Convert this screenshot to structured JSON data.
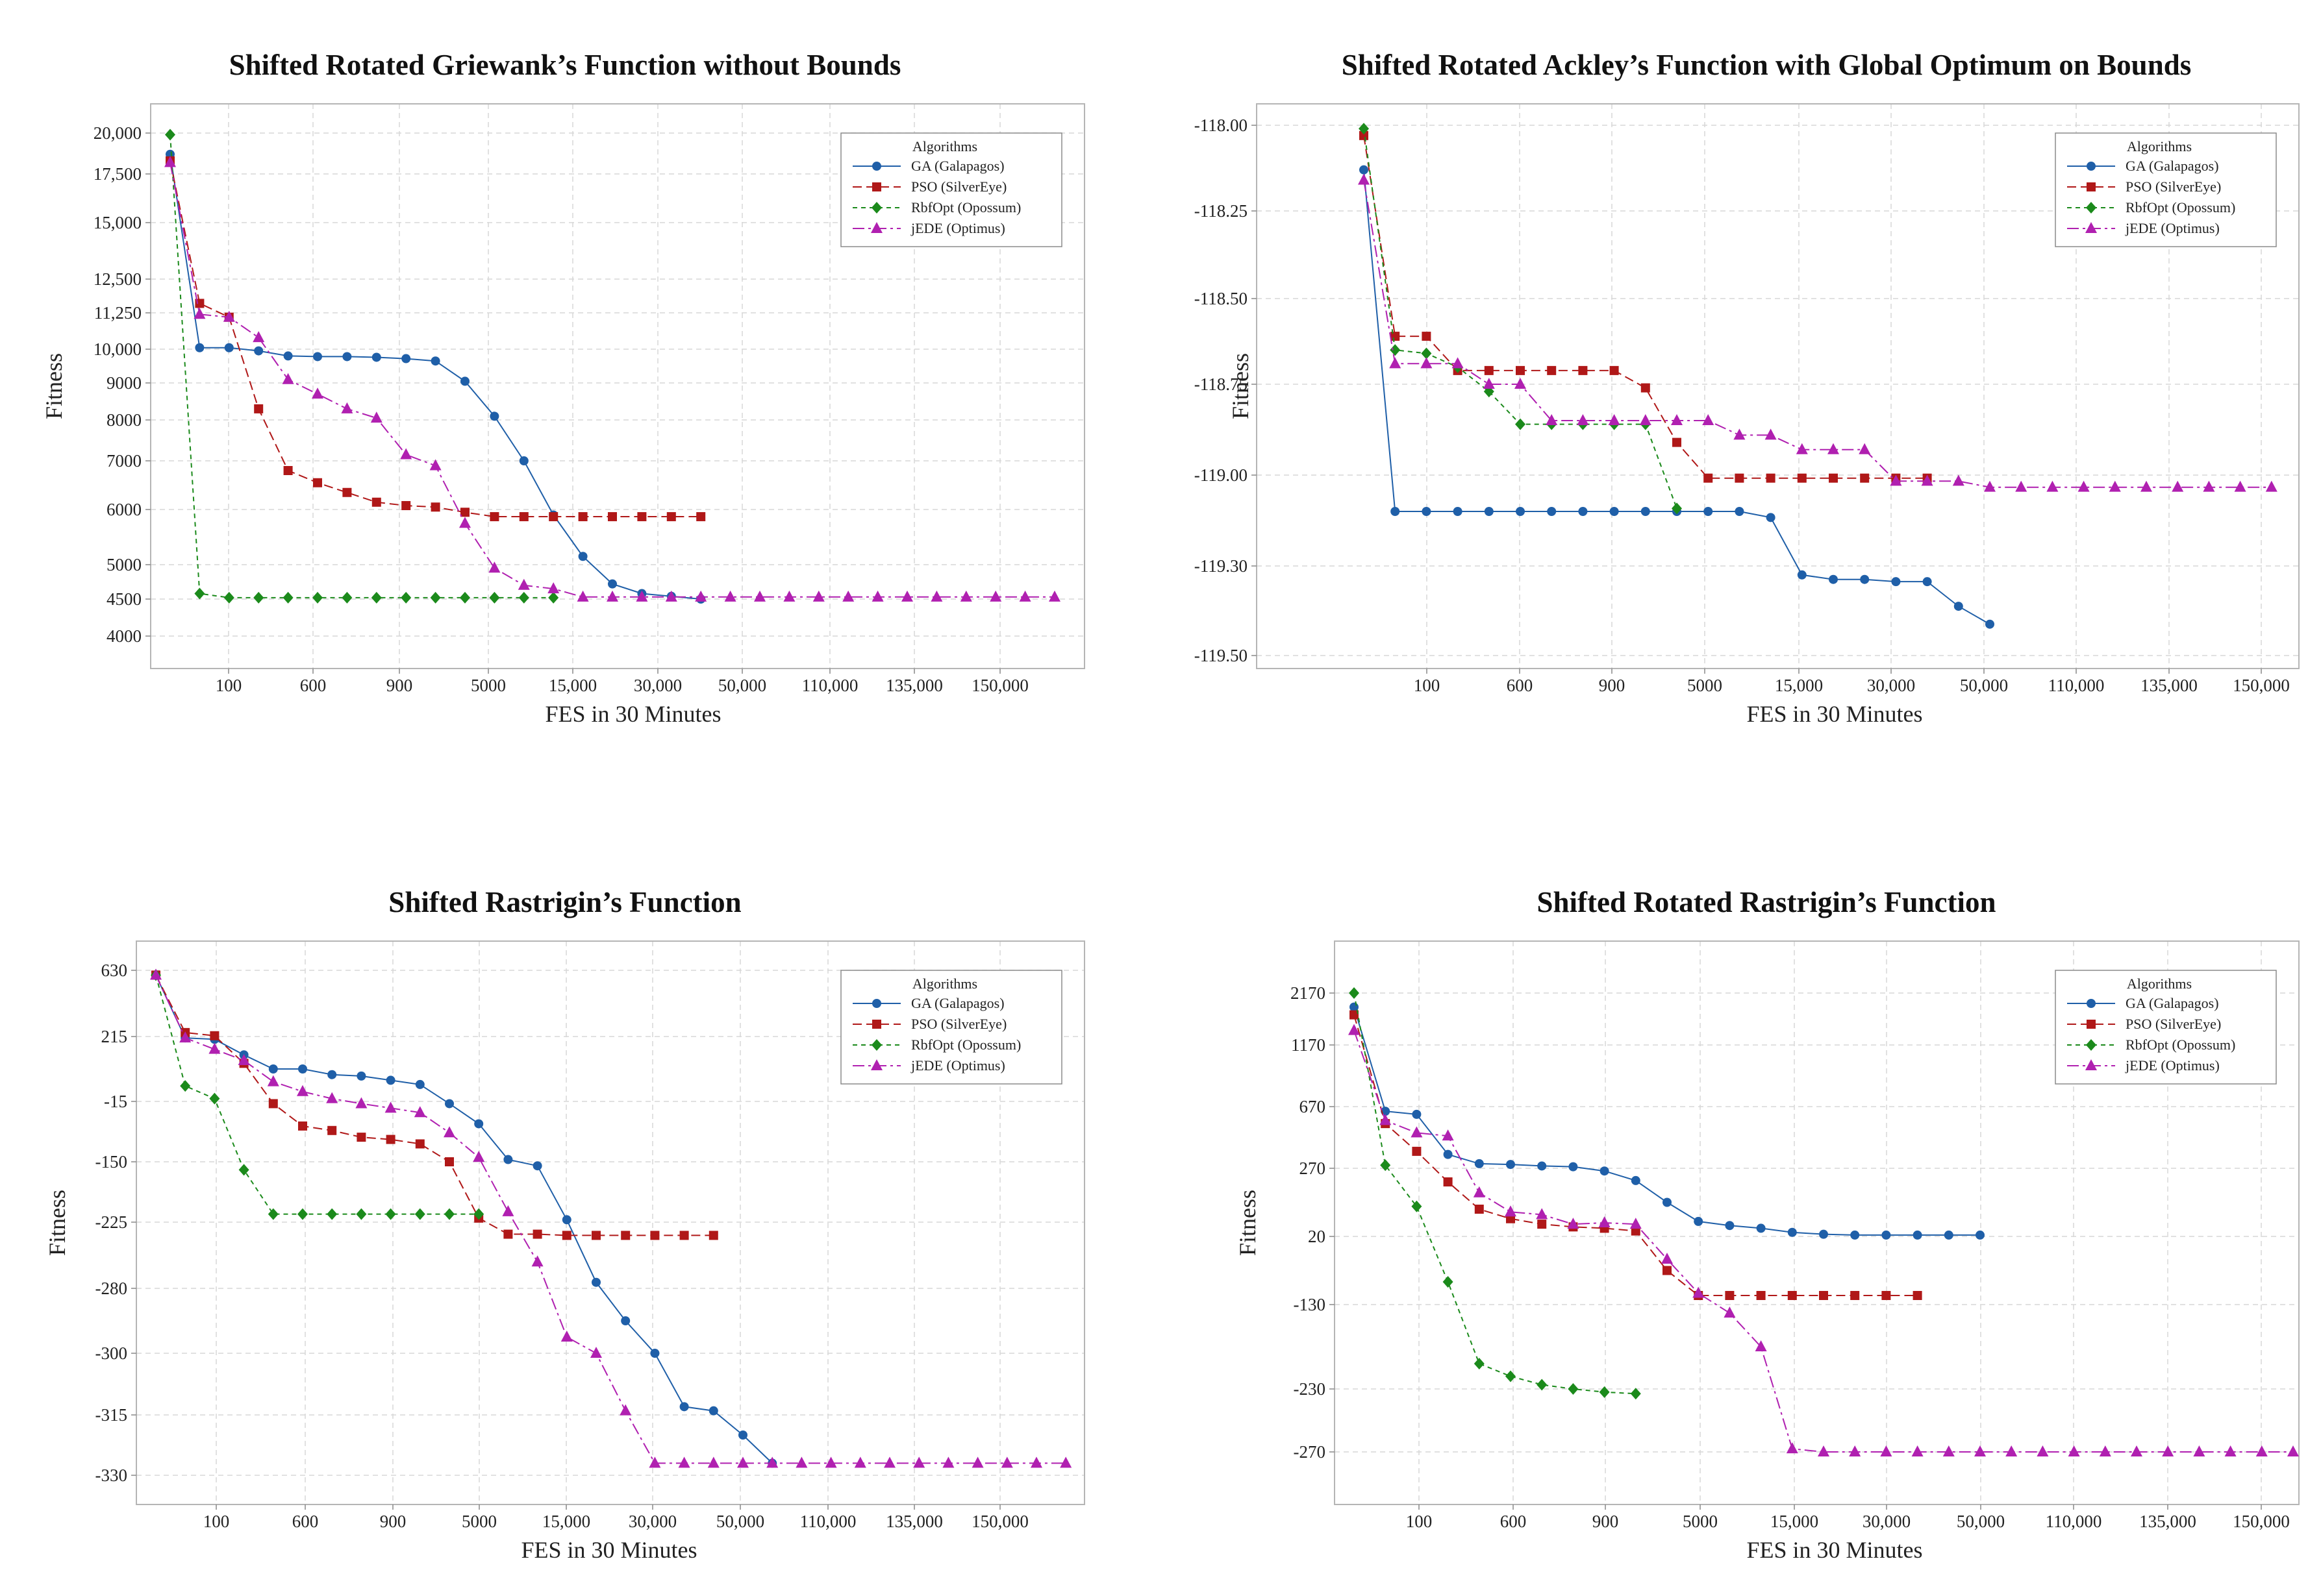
{
  "colors": {
    "GA": "#1f5fa8",
    "PSO": "#b01818",
    "RbfOpt": "#1b8a1b",
    "jEDE": "#b020b0"
  },
  "chart_data": [
    {
      "type": "line",
      "title": "Shifted Rotated Griewank’s Function without Bounds",
      "xlabel": "FES in 30 Minutes",
      "ylabel": "Fitness",
      "x_ticks": [
        "100",
        "600",
        "900",
        "5000",
        "15,000",
        "30,000",
        "50,000",
        "110,000",
        "135,000",
        "150,000"
      ],
      "y_ticks": [
        "20,000",
        "17,500",
        "15,000",
        "12,500",
        "11,250",
        "10,000",
        "9000",
        "8000",
        "7000",
        "6000",
        "5000",
        "4500",
        "4000"
      ],
      "legend_title": "Algorithms",
      "legend_position": "top-right",
      "series": [
        {
          "name": "GA (Galapagos)",
          "key": "GA",
          "marker": "circle",
          "x": [
            0,
            1,
            2,
            3,
            4,
            5,
            6,
            7,
            8,
            9,
            10,
            11,
            12,
            13,
            14,
            15,
            16,
            17,
            18
          ],
          "y": [
            18700,
            10050,
            10050,
            9950,
            9800,
            9780,
            9780,
            9760,
            9720,
            9650,
            9050,
            8100,
            7000,
            5900,
            5150,
            4720,
            4580,
            4540,
            4500
          ]
        },
        {
          "name": "PSO (SilverEye)",
          "key": "PSO",
          "marker": "square",
          "x": [
            0,
            1,
            2,
            3,
            4,
            5,
            6,
            7,
            8,
            9,
            10,
            11,
            12,
            13,
            14,
            15,
            16,
            17,
            18
          ],
          "y": [
            18300,
            11600,
            11100,
            8300,
            6800,
            6550,
            6350,
            6150,
            6080,
            6050,
            5950,
            5870,
            5870,
            5870,
            5870,
            5870,
            5870,
            5870,
            5870
          ]
        },
        {
          "name": "RbfOpt (Opossum)",
          "key": "RbfOpt",
          "marker": "diamond",
          "x": [
            0,
            1,
            2,
            3,
            4,
            5,
            6,
            7,
            8,
            9,
            10,
            11,
            12,
            13
          ],
          "y": [
            19900,
            4580,
            4520,
            4520,
            4520,
            4520,
            4520,
            4520,
            4520,
            4520,
            4520,
            4520,
            4520,
            4520
          ]
        },
        {
          "name": "jEDE (Optimus)",
          "key": "jEDE",
          "marker": "triangle",
          "x": [
            0,
            1,
            2,
            3,
            4,
            5,
            6,
            7,
            8,
            9,
            10,
            11,
            12,
            13,
            14,
            15,
            16,
            17,
            18,
            19,
            20,
            21,
            22,
            23,
            24,
            25,
            26,
            27,
            28,
            29,
            30
          ],
          "y": [
            18200,
            11200,
            11100,
            10400,
            9100,
            8700,
            8300,
            8050,
            7150,
            6900,
            5750,
            4950,
            4700,
            4650,
            4530,
            4530,
            4530,
            4530,
            4530,
            4530,
            4530,
            4530,
            4530,
            4530,
            4530,
            4530,
            4530,
            4530,
            4530,
            4530,
            4530
          ]
        }
      ]
    },
    {
      "type": "line",
      "title": "Shifted Rotated Ackley’s Function with Global Optimum on Bounds",
      "xlabel": "FES in 30 Minutes",
      "ylabel": "Fitness",
      "x_ticks": [
        "100",
        "600",
        "900",
        "5000",
        "15,000",
        "30,000",
        "50,000",
        "110,000",
        "135,000",
        "150,000"
      ],
      "y_ticks": [
        "-118.00",
        "-118.25",
        "-118.50",
        "-118.75",
        "-119.00",
        "-119.30",
        "-119.50"
      ],
      "legend_title": "Algorithms",
      "legend_position": "top-right",
      "series": [
        {
          "name": "GA (Galapagos)",
          "key": "GA",
          "marker": "circle",
          "x": [
            0,
            1,
            2,
            3,
            4,
            5,
            6,
            7,
            8,
            9,
            10,
            11,
            12,
            13,
            14,
            15,
            16,
            17,
            18,
            19,
            20
          ],
          "y": [
            -118.13,
            -119.12,
            -119.12,
            -119.12,
            -119.12,
            -119.12,
            -119.12,
            -119.12,
            -119.12,
            -119.12,
            -119.12,
            -119.12,
            -119.12,
            -119.14,
            -119.32,
            -119.33,
            -119.33,
            -119.335,
            -119.335,
            -119.39,
            -119.43
          ]
        },
        {
          "name": "PSO (SilverEye)",
          "key": "PSO",
          "marker": "square",
          "x": [
            0,
            1,
            2,
            3,
            4,
            5,
            6,
            7,
            8,
            9,
            10,
            11,
            12,
            13,
            14,
            15,
            16,
            17,
            18
          ],
          "y": [
            -118.03,
            -118.61,
            -118.61,
            -118.71,
            -118.71,
            -118.71,
            -118.71,
            -118.71,
            -118.71,
            -118.76,
            -118.91,
            -119.01,
            -119.01,
            -119.01,
            -119.01,
            -119.01,
            -119.01,
            -119.01,
            -119.01
          ]
        },
        {
          "name": "RbfOpt (Opossum)",
          "key": "RbfOpt",
          "marker": "diamond",
          "x": [
            0,
            1,
            2,
            3,
            4,
            5,
            6,
            7,
            8,
            9,
            10
          ],
          "y": [
            -118.01,
            -118.65,
            -118.66,
            -118.7,
            -118.77,
            -118.86,
            -118.86,
            -118.86,
            -118.86,
            -118.86,
            -119.11
          ]
        },
        {
          "name": "jEDE (Optimus)",
          "key": "jEDE",
          "marker": "triangle",
          "x": [
            0,
            1,
            2,
            3,
            4,
            5,
            6,
            7,
            8,
            9,
            10,
            11,
            12,
            13,
            14,
            15,
            16,
            17,
            18,
            19,
            20,
            21,
            22,
            23,
            24,
            25,
            26,
            27,
            28,
            29
          ],
          "y": [
            -118.16,
            -118.69,
            -118.69,
            -118.69,
            -118.75,
            -118.75,
            -118.85,
            -118.85,
            -118.85,
            -118.85,
            -118.85,
            -118.85,
            -118.89,
            -118.89,
            -118.93,
            -118.93,
            -118.93,
            -119.02,
            -119.02,
            -119.02,
            -119.04,
            -119.04,
            -119.04,
            -119.04,
            -119.04,
            -119.04,
            -119.04,
            -119.04,
            -119.04,
            -119.04
          ]
        }
      ]
    },
    {
      "type": "line",
      "title": "Shifted Rastrigin’s Function",
      "xlabel": "FES in 30 Minutes",
      "ylabel": "Fitness",
      "x_ticks": [
        "100",
        "600",
        "900",
        "5000",
        "15,000",
        "30,000",
        "50,000",
        "110,000",
        "135,000",
        "150,000"
      ],
      "y_ticks": [
        "630",
        "215",
        "-15",
        "-150",
        "-225",
        "-280",
        "-300",
        "-315",
        "-330"
      ],
      "legend_title": "Algorithms",
      "legend_position": "top-right",
      "series": [
        {
          "name": "GA (Galapagos)",
          "key": "GA",
          "marker": "circle",
          "x": [
            0,
            1,
            2,
            3,
            4,
            5,
            6,
            7,
            8,
            9,
            10,
            11,
            12,
            13,
            14,
            15,
            16,
            17,
            18,
            19,
            20,
            21
          ],
          "y": [
            600,
            210,
            205,
            150,
            100,
            100,
            80,
            75,
            60,
            45,
            -20,
            -65,
            -145,
            -155,
            -222,
            -275,
            -290,
            -300,
            -313,
            -314,
            -320,
            -327
          ]
        },
        {
          "name": "PSO (SilverEye)",
          "key": "PSO",
          "marker": "square",
          "x": [
            0,
            1,
            2,
            3,
            4,
            5,
            6,
            7,
            8,
            9,
            10,
            11,
            12,
            13,
            14,
            15,
            16,
            17,
            18,
            19
          ],
          "y": [
            600,
            240,
            220,
            120,
            -20,
            -70,
            -80,
            -95,
            -100,
            -110,
            -150,
            -220,
            -235,
            -235,
            -236,
            -236,
            -236,
            -236,
            -236,
            -236
          ]
        },
        {
          "name": "RbfOpt (Opossum)",
          "key": "RbfOpt",
          "marker": "diamond",
          "x": [
            0,
            1,
            2,
            3,
            4,
            5,
            6,
            7,
            8,
            9,
            10,
            11
          ],
          "y": [
            600,
            40,
            -5,
            -160,
            -215,
            -215,
            -215,
            -215,
            -215,
            -215,
            -215,
            -215
          ]
        },
        {
          "name": "jEDE (Optimus)",
          "key": "jEDE",
          "marker": "triangle",
          "x": [
            0,
            1,
            2,
            3,
            4,
            5,
            6,
            7,
            8,
            9,
            10,
            11,
            12,
            13,
            14,
            15,
            16,
            17,
            18,
            19,
            20,
            21,
            22,
            23,
            24,
            25,
            26,
            27,
            28,
            29,
            30,
            31
          ],
          "y": [
            600,
            210,
            170,
            130,
            55,
            20,
            -5,
            -20,
            -30,
            -40,
            -85,
            -140,
            -212,
            -258,
            -295,
            -300,
            -314,
            -327,
            -327,
            -327,
            -327,
            -327,
            -327,
            -327,
            -327,
            -327,
            -327,
            -327,
            -327,
            -327,
            -327,
            -327
          ]
        }
      ]
    },
    {
      "type": "line",
      "title": "Shifted Rotated Rastrigin’s Function",
      "xlabel": "FES in 30 Minutes",
      "ylabel": "Fitness",
      "x_ticks": [
        "100",
        "600",
        "900",
        "5000",
        "15,000",
        "30,000",
        "50,000",
        "110,000",
        "135,000",
        "150,000"
      ],
      "y_ticks": [
        "2170",
        "1170",
        "670",
        "270",
        "20",
        "-130",
        "-230",
        "-270"
      ],
      "legend_title": "Algorithms",
      "legend_position": "top-right",
      "series": [
        {
          "name": "GA (Galapagos)",
          "key": "GA",
          "marker": "circle",
          "x": [
            0,
            1,
            2,
            3,
            4,
            5,
            6,
            7,
            8,
            9,
            10,
            11,
            12,
            13,
            14,
            15,
            16,
            17,
            18,
            19,
            20
          ],
          "y": [
            1900,
            640,
            620,
            360,
            300,
            295,
            285,
            280,
            260,
            225,
            145,
            75,
            60,
            50,
            35,
            28,
            25,
            25,
            25,
            25,
            25
          ]
        },
        {
          "name": "PSO (SilverEye)",
          "key": "PSO",
          "marker": "square",
          "x": [
            0,
            1,
            2,
            3,
            4,
            5,
            6,
            7,
            8,
            9,
            10,
            11,
            12,
            13,
            14,
            15,
            16,
            17,
            18
          ],
          "y": [
            1750,
            560,
            380,
            220,
            120,
            85,
            65,
            55,
            50,
            40,
            -55,
            -110,
            -110,
            -110,
            -110,
            -110,
            -110,
            -110,
            -110
          ]
        },
        {
          "name": "RbfOpt (Opossum)",
          "key": "RbfOpt",
          "marker": "diamond",
          "x": [
            0,
            1,
            2,
            3,
            4,
            5,
            6,
            7,
            8,
            9
          ],
          "y": [
            2170,
            290,
            130,
            -80,
            -200,
            -215,
            -225,
            -230,
            -232,
            -233
          ]
        },
        {
          "name": "jEDE (Optimus)",
          "key": "jEDE",
          "marker": "triangle",
          "x": [
            0,
            1,
            2,
            3,
            4,
            5,
            6,
            7,
            8,
            9,
            10,
            11,
            12,
            13,
            14,
            15,
            16,
            17,
            18,
            19,
            20,
            21,
            22,
            23,
            24,
            25,
            26,
            27,
            28,
            29,
            30
          ],
          "y": [
            1450,
            580,
            500,
            480,
            180,
            110,
            100,
            65,
            70,
            65,
            -30,
            -105,
            -140,
            -180,
            -268,
            -270,
            -270,
            -270,
            -270,
            -270,
            -270,
            -270,
            -270,
            -270,
            -270,
            -270,
            -270,
            -270,
            -270,
            -270,
            -270
          ]
        }
      ]
    }
  ]
}
